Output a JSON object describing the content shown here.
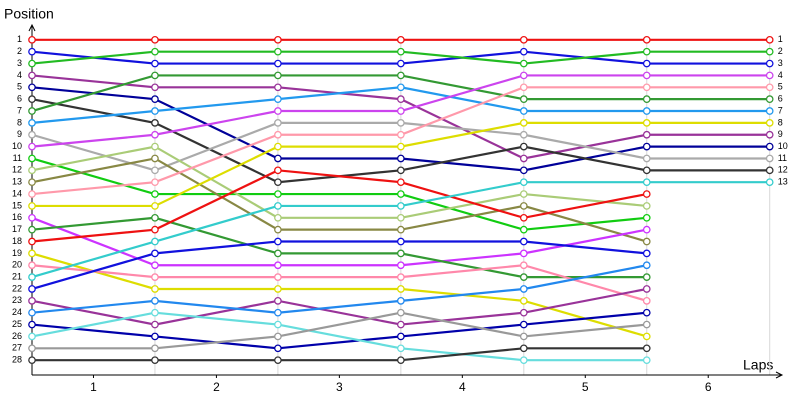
{
  "chart_data": {
    "type": "line",
    "y_label": "Position",
    "x_label": "Laps",
    "x": [
      0,
      1,
      2,
      3,
      4,
      5,
      6
    ],
    "xlim": [
      0,
      6.1
    ],
    "xticks": [
      {
        "value": 0.5,
        "label": "1"
      },
      {
        "value": 1.5,
        "label": "2"
      },
      {
        "value": 2.5,
        "label": "3"
      },
      {
        "value": 3.5,
        "label": "4"
      },
      {
        "value": 4.5,
        "label": "5"
      },
      {
        "value": 5.5,
        "label": "6"
      }
    ],
    "ylim": [
      29.25,
      -0.25
    ],
    "yticks": [
      1,
      2,
      3,
      4,
      5,
      6,
      7,
      8,
      9,
      10,
      11,
      12,
      13,
      14,
      15,
      16,
      17,
      18,
      19,
      20,
      21,
      22,
      23,
      24,
      25,
      26,
      27,
      28
    ],
    "grid": true,
    "series": [
      {
        "color": "#ee1111",
        "values": [
          1,
          1,
          1,
          1,
          1,
          1,
          1
        ]
      },
      {
        "color": "#1111dd",
        "values": [
          2,
          3,
          3,
          3,
          2,
          3,
          3
        ]
      },
      {
        "color": "#22bb22",
        "values": [
          3,
          2,
          2,
          2,
          3,
          2,
          2
        ]
      },
      {
        "color": "#993399",
        "values": [
          4,
          5,
          5,
          6,
          11,
          9,
          9
        ]
      },
      {
        "color": "#000099",
        "values": [
          5,
          6,
          11,
          11,
          12,
          10,
          10
        ]
      },
      {
        "color": "#333333",
        "values": [
          6,
          8,
          13,
          12,
          10,
          12,
          12
        ]
      },
      {
        "color": "#339933",
        "values": [
          7,
          4,
          4,
          4,
          6,
          6,
          6
        ]
      },
      {
        "color": "#2299ee",
        "values": [
          8,
          7,
          6,
          5,
          7,
          7,
          7
        ]
      },
      {
        "color": "#aaaaaa",
        "values": [
          9,
          12,
          8,
          8,
          9,
          11,
          11
        ]
      },
      {
        "color": "#cc44ee",
        "values": [
          10,
          9,
          7,
          7,
          4,
          4,
          4
        ]
      },
      {
        "color": "#11cc11",
        "values": [
          11,
          14,
          14,
          14,
          17,
          16,
          null
        ]
      },
      {
        "color": "#aacc77",
        "values": [
          12,
          10,
          16,
          16,
          14,
          15,
          null
        ]
      },
      {
        "color": "#888844",
        "values": [
          13,
          11,
          17,
          17,
          15,
          18,
          null
        ]
      },
      {
        "color": "#ff99aa",
        "values": [
          14,
          13,
          9,
          9,
          5,
          5,
          5
        ]
      },
      {
        "color": "#dddd00",
        "values": [
          15,
          15,
          10,
          10,
          8,
          8,
          8
        ]
      },
      {
        "color": "#cc33ff",
        "values": [
          16,
          20,
          20,
          20,
          19,
          17,
          null
        ]
      },
      {
        "color": "#339933",
        "values": [
          17,
          16,
          19,
          19,
          21,
          21,
          null
        ]
      },
      {
        "color": "#ee1111",
        "values": [
          18,
          17,
          12,
          13,
          16,
          14,
          null
        ]
      },
      {
        "color": "#dddd00",
        "values": [
          19,
          22,
          22,
          22,
          23,
          26,
          null
        ]
      },
      {
        "color": "#ff88aa",
        "values": [
          20,
          21,
          21,
          21,
          20,
          23,
          null
        ]
      },
      {
        "color": "#33cccc",
        "values": [
          21,
          18,
          15,
          15,
          13,
          13,
          13
        ]
      },
      {
        "color": "#1111dd",
        "values": [
          22,
          19,
          18,
          18,
          18,
          19,
          null
        ]
      },
      {
        "color": "#993399",
        "values": [
          23,
          25,
          23,
          25,
          24,
          22,
          null
        ]
      },
      {
        "color": "#2288ee",
        "values": [
          24,
          23,
          24,
          23,
          22,
          20,
          null
        ]
      },
      {
        "color": "#0000aa",
        "values": [
          25,
          26,
          27,
          26,
          25,
          24,
          null
        ]
      },
      {
        "color": "#66dddd",
        "values": [
          26,
          24,
          25,
          27,
          28,
          28,
          null
        ]
      },
      {
        "color": "#999999",
        "values": [
          27,
          27,
          26,
          24,
          26,
          25,
          null
        ]
      },
      {
        "color": "#333333",
        "values": [
          28,
          28,
          28,
          28,
          27,
          27,
          null
        ]
      }
    ]
  }
}
